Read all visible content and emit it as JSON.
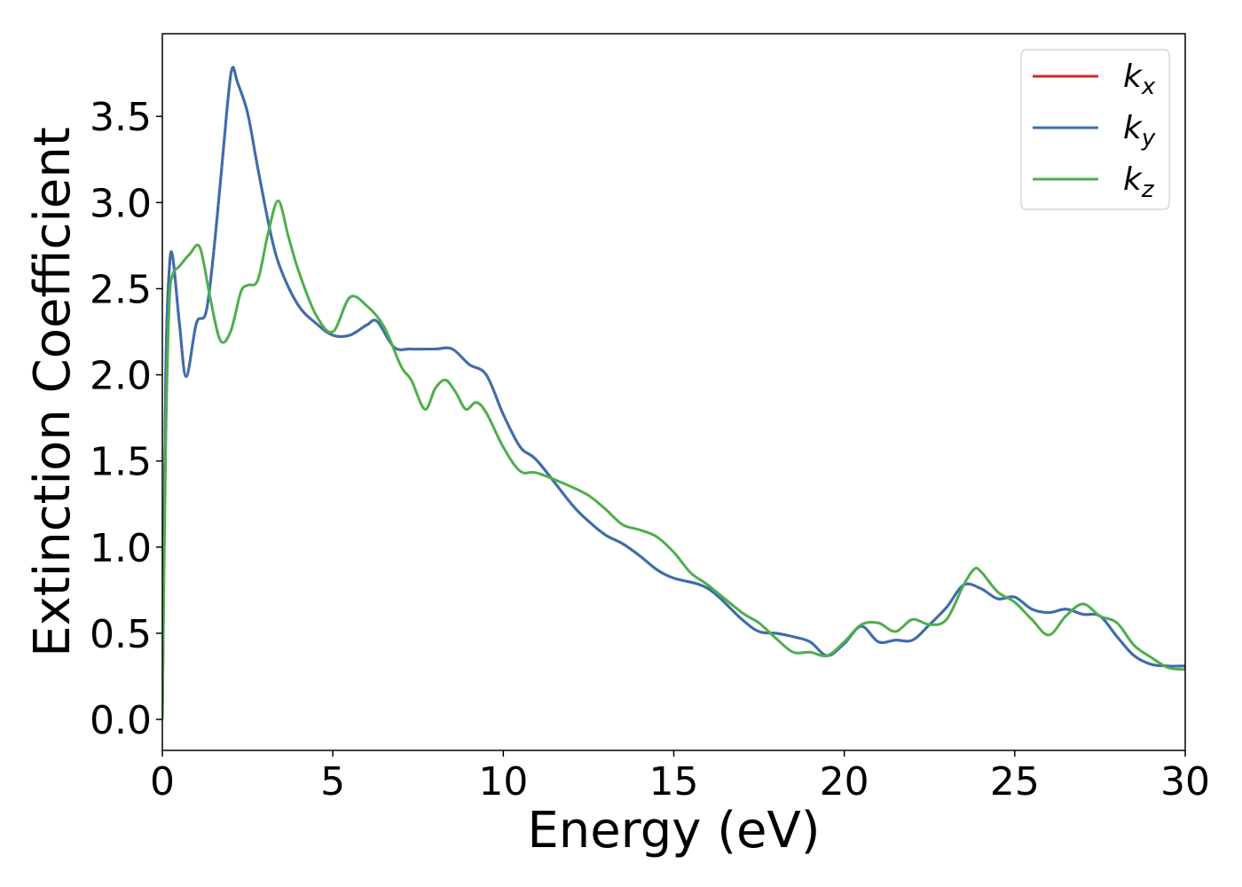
{
  "chart_data": {
    "type": "line",
    "title": "",
    "xlabel": "Energy (eV)",
    "ylabel": "Extinction Coefficient",
    "xlim": [
      0,
      30
    ],
    "ylim": [
      -0.18,
      3.98
    ],
    "xticks": [
      0,
      5,
      10,
      15,
      20,
      25,
      30
    ],
    "yticks": [
      0.0,
      0.5,
      1.0,
      1.5,
      2.0,
      2.5,
      3.0,
      3.5
    ],
    "xtick_labels": [
      "0",
      "5",
      "10",
      "15",
      "20",
      "25",
      "30"
    ],
    "ytick_labels": [
      "0.0",
      "0.5",
      "1.0",
      "1.5",
      "2.0",
      "2.5",
      "3.0",
      "3.5"
    ],
    "grid": false,
    "legend_position": "top-right",
    "series": [
      {
        "name": "k",
        "subscript": "x",
        "color": "#d62728",
        "x": [
          0,
          0.1,
          0.2,
          0.3,
          0.5,
          0.7,
          1.0,
          1.3,
          1.6,
          1.9,
          2.05,
          2.2,
          2.5,
          2.8,
          3.2,
          3.5,
          4.0,
          4.5,
          5.0,
          5.5,
          6.0,
          6.3,
          6.8,
          7.3,
          8.0,
          8.5,
          9.0,
          9.5,
          10.0,
          10.5,
          11.0,
          12.0,
          12.5,
          13.0,
          13.5,
          14.0,
          14.5,
          15.0,
          16.0,
          17.0,
          17.5,
          18.0,
          18.5,
          19.0,
          19.5,
          20.0,
          20.5,
          21.0,
          21.5,
          22.0,
          22.5,
          23.0,
          23.5,
          24.0,
          24.5,
          25.0,
          25.5,
          26.0,
          26.5,
          27.0,
          27.5,
          28.0,
          28.5,
          29.0,
          29.5,
          30.0
        ],
        "values": [
          0.0,
          2.0,
          2.6,
          2.69,
          2.3,
          1.99,
          2.3,
          2.38,
          2.9,
          3.55,
          3.78,
          3.7,
          3.52,
          3.2,
          2.8,
          2.6,
          2.4,
          2.3,
          2.23,
          2.23,
          2.29,
          2.31,
          2.16,
          2.15,
          2.15,
          2.15,
          2.06,
          2.0,
          1.77,
          1.58,
          1.5,
          1.25,
          1.15,
          1.07,
          1.02,
          0.95,
          0.87,
          0.82,
          0.76,
          0.58,
          0.51,
          0.5,
          0.48,
          0.45,
          0.37,
          0.44,
          0.54,
          0.45,
          0.46,
          0.46,
          0.55,
          0.65,
          0.78,
          0.76,
          0.7,
          0.71,
          0.64,
          0.62,
          0.64,
          0.61,
          0.6,
          0.48,
          0.37,
          0.32,
          0.31,
          0.31
        ]
      },
      {
        "name": "k",
        "subscript": "y",
        "color": "#3a6fb0",
        "x": [
          0,
          0.1,
          0.2,
          0.3,
          0.5,
          0.7,
          1.0,
          1.3,
          1.6,
          1.9,
          2.05,
          2.2,
          2.5,
          2.8,
          3.2,
          3.5,
          4.0,
          4.5,
          5.0,
          5.5,
          6.0,
          6.3,
          6.8,
          7.3,
          8.0,
          8.5,
          9.0,
          9.5,
          10.0,
          10.5,
          11.0,
          12.0,
          12.5,
          13.0,
          13.5,
          14.0,
          14.5,
          15.0,
          16.0,
          17.0,
          17.5,
          18.0,
          18.5,
          19.0,
          19.5,
          20.0,
          20.5,
          21.0,
          21.5,
          22.0,
          22.5,
          23.0,
          23.5,
          24.0,
          24.5,
          25.0,
          25.5,
          26.0,
          26.5,
          27.0,
          27.5,
          28.0,
          28.5,
          29.0,
          29.5,
          30.0
        ],
        "values": [
          0.0,
          2.0,
          2.6,
          2.69,
          2.3,
          1.99,
          2.3,
          2.38,
          2.9,
          3.55,
          3.78,
          3.7,
          3.52,
          3.2,
          2.8,
          2.6,
          2.4,
          2.3,
          2.23,
          2.23,
          2.29,
          2.31,
          2.16,
          2.15,
          2.15,
          2.15,
          2.06,
          2.0,
          1.77,
          1.58,
          1.5,
          1.25,
          1.15,
          1.07,
          1.02,
          0.95,
          0.87,
          0.82,
          0.76,
          0.58,
          0.51,
          0.5,
          0.48,
          0.45,
          0.37,
          0.44,
          0.54,
          0.45,
          0.46,
          0.46,
          0.55,
          0.65,
          0.78,
          0.76,
          0.7,
          0.71,
          0.64,
          0.62,
          0.64,
          0.61,
          0.6,
          0.48,
          0.37,
          0.32,
          0.31,
          0.31
        ]
      },
      {
        "name": "k",
        "subscript": "z",
        "color": "#4daf4a",
        "x": [
          0,
          0.1,
          0.2,
          0.3,
          0.5,
          0.8,
          1.1,
          1.4,
          1.7,
          2.0,
          2.3,
          2.5,
          2.8,
          3.1,
          3.4,
          3.7,
          4.0,
          4.5,
          5.0,
          5.5,
          6.0,
          6.5,
          7.0,
          7.3,
          7.7,
          8.0,
          8.3,
          8.6,
          8.9,
          9.2,
          9.5,
          10.0,
          10.5,
          11.0,
          12.0,
          12.5,
          13.0,
          13.5,
          14.0,
          14.5,
          15.0,
          15.5,
          16.0,
          17.0,
          17.5,
          18.0,
          18.5,
          19.0,
          19.5,
          20.0,
          20.5,
          21.0,
          21.5,
          22.0,
          22.5,
          23.0,
          23.5,
          23.8,
          24.0,
          24.5,
          25.0,
          25.5,
          26.0,
          26.5,
          27.0,
          27.5,
          28.0,
          28.5,
          29.0,
          29.5,
          30.0
        ],
        "values": [
          0.0,
          1.6,
          2.4,
          2.58,
          2.63,
          2.7,
          2.74,
          2.45,
          2.2,
          2.25,
          2.48,
          2.52,
          2.55,
          2.82,
          3.01,
          2.8,
          2.6,
          2.35,
          2.25,
          2.45,
          2.4,
          2.28,
          2.05,
          1.97,
          1.8,
          1.92,
          1.97,
          1.9,
          1.8,
          1.84,
          1.78,
          1.58,
          1.44,
          1.43,
          1.35,
          1.3,
          1.22,
          1.13,
          1.1,
          1.06,
          0.97,
          0.85,
          0.78,
          0.62,
          0.56,
          0.47,
          0.39,
          0.39,
          0.37,
          0.45,
          0.55,
          0.56,
          0.51,
          0.58,
          0.55,
          0.58,
          0.78,
          0.87,
          0.86,
          0.74,
          0.68,
          0.58,
          0.49,
          0.6,
          0.67,
          0.6,
          0.56,
          0.43,
          0.36,
          0.3,
          0.29
        ]
      }
    ]
  }
}
